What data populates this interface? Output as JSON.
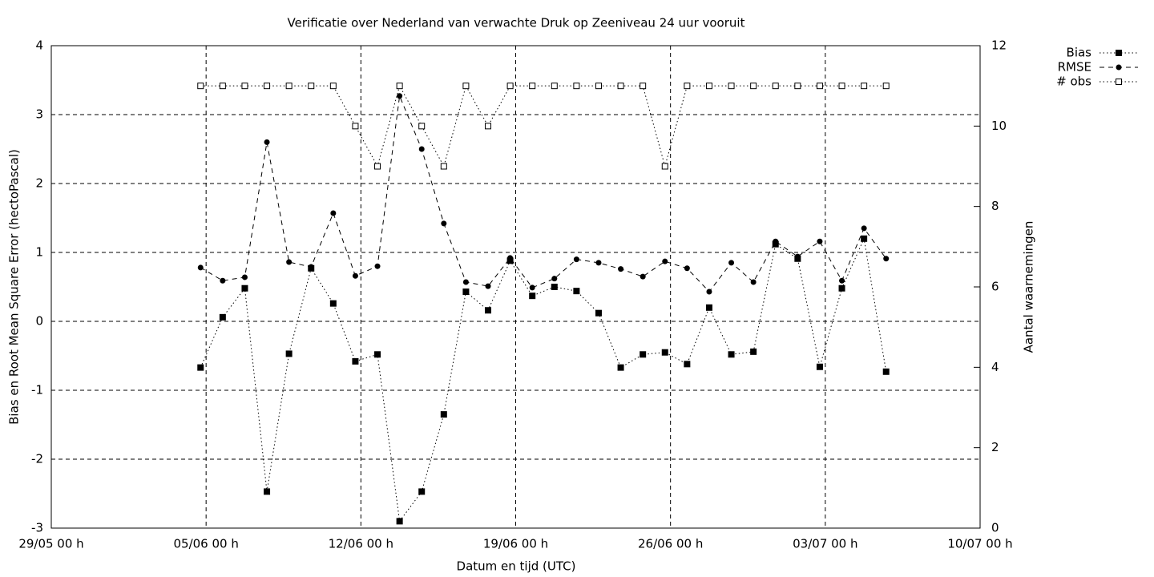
{
  "chart_data": {
    "type": "line",
    "title": "Verificatie over Nederland van verwachte Druk op Zeeniveau 24 uur vooruit",
    "xlabel": "Datum en tijd (UTC)",
    "ylabel": "Bias en Root Mean Square Error (hectoPascal)",
    "y2label": "Aantal waarnemingen",
    "x": [
      6.75,
      7.75,
      8.75,
      9.75,
      10.75,
      11.75,
      12.75,
      13.75,
      14.75,
      15.75,
      16.75,
      17.75,
      18.75,
      19.75,
      20.75,
      21.75,
      22.75,
      23.75,
      24.75,
      25.75,
      26.75,
      27.75,
      28.75,
      29.75,
      30.75,
      31.75,
      32.75,
      33.75,
      34.75,
      35.75,
      36.75,
      37.75
    ],
    "series": [
      {
        "name": "Bias",
        "color": "#000000",
        "line_style": "dotted",
        "marker": "square",
        "values": [
          -0.67,
          0.06,
          0.48,
          -2.47,
          -0.47,
          0.77,
          0.26,
          -0.58,
          -0.48,
          -2.9,
          -2.47,
          -1.35,
          0.43,
          0.16,
          0.88,
          0.37,
          0.5,
          0.44,
          0.12,
          -0.67,
          -0.48,
          -0.45,
          -0.62,
          0.2,
          -0.48,
          -0.44,
          1.12,
          0.91,
          -0.66,
          0.48,
          1.2,
          -0.73
        ]
      },
      {
        "name": "RMSE",
        "color": "#000000",
        "line_style": "dashed",
        "marker": "circle",
        "values": [
          0.78,
          0.59,
          0.64,
          2.6,
          0.86,
          0.79,
          1.57,
          0.66,
          0.8,
          3.27,
          2.5,
          1.42,
          0.57,
          0.51,
          0.92,
          0.49,
          0.62,
          0.9,
          0.85,
          0.76,
          0.65,
          0.87,
          0.77,
          0.43,
          0.85,
          0.57,
          1.16,
          0.94,
          1.16,
          0.59,
          1.35,
          0.91
        ]
      },
      {
        "name": "# obs",
        "color": "#000000",
        "line_style": "dotted",
        "marker": "open-square",
        "axis": "y2",
        "values": [
          11,
          11,
          11,
          11,
          11,
          11,
          11,
          10,
          9,
          11,
          10,
          9,
          11,
          10,
          11,
          11,
          11,
          11,
          11,
          11,
          11,
          9,
          11,
          11,
          11,
          11,
          11,
          11,
          11,
          11,
          11,
          11
        ]
      }
    ],
    "xlim": [
      0,
      42
    ],
    "xticks": [
      {
        "value": 0,
        "label": "29/05 00 h"
      },
      {
        "value": 7,
        "label": "05/06 00 h"
      },
      {
        "value": 14,
        "label": "12/06 00 h"
      },
      {
        "value": 21,
        "label": "19/06 00 h"
      },
      {
        "value": 28,
        "label": "26/06 00 h"
      },
      {
        "value": 35,
        "label": "03/07 00 h"
      },
      {
        "value": 42,
        "label": "10/07 00 h"
      }
    ],
    "ylim": [
      -3,
      4
    ],
    "yticks": [
      -3,
      -2,
      -1,
      0,
      1,
      2,
      3,
      4
    ],
    "y2lim": [
      0,
      12
    ],
    "y2ticks": [
      0,
      2,
      4,
      6,
      8,
      10,
      12
    ],
    "grid": true,
    "legend": "outside-top-right"
  }
}
